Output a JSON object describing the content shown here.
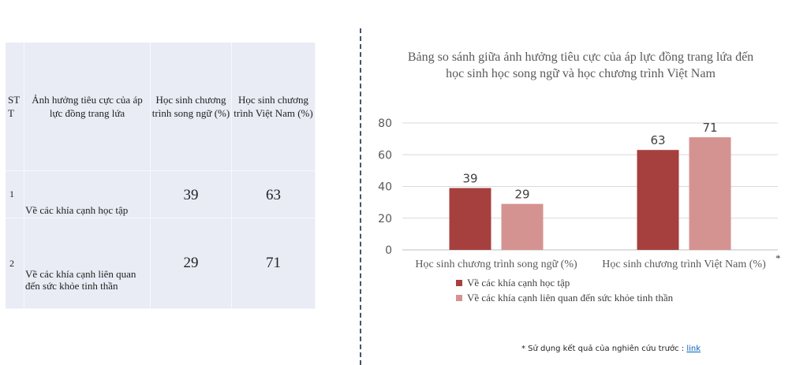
{
  "table": {
    "headers": {
      "stt": "ST T",
      "criterion": "Ảnh hưởng tiêu cực của áp lực đồng trang lứa",
      "bilingual": "Học sinh chương trình song ngữ (%)",
      "vietnam": "Học sinh chương trình Việt Nam (%)"
    },
    "rows": [
      {
        "stt": "1",
        "criterion": "Về các khía cạnh học tập",
        "bilingual": "39",
        "vietnam": "63"
      },
      {
        "stt": "2",
        "criterion": "Về các khía cạnh liên quan đến sức khỏe tinh thần",
        "bilingual": "29",
        "vietnam": "71"
      }
    ]
  },
  "chart_data": {
    "type": "bar",
    "title": "Bảng so sánh giữa ảnh hưởng tiêu cực của áp lực đồng trang lứa đến học sinh học song ngữ và học chương trình Việt Nam",
    "categories": [
      "Học sinh chương trình song ngữ (%)",
      "Học sinh chương trình Việt Nam (%)"
    ],
    "series": [
      {
        "name": "Về các khía cạnh học tập",
        "values": [
          39,
          63
        ],
        "color": "#a6403f"
      },
      {
        "name": "Về các khía cạnh liên quan đến sức khỏe tinh thần",
        "values": [
          29,
          71
        ],
        "color": "#d49391"
      }
    ],
    "ylim": [
      0,
      80
    ],
    "yticks": [
      0,
      20,
      40,
      60,
      80
    ],
    "grid": true,
    "legend": "bottom",
    "data_labels": true
  },
  "asterisk": "*",
  "footnote": {
    "text": "* Sử dụng kết quả của nghiên cứu trước : ",
    "link": "link"
  },
  "colors": {
    "table_bg": "#e9ecf5",
    "divider": "#44546a",
    "grid": "#d9d9d9",
    "axis_text": "#595959"
  }
}
